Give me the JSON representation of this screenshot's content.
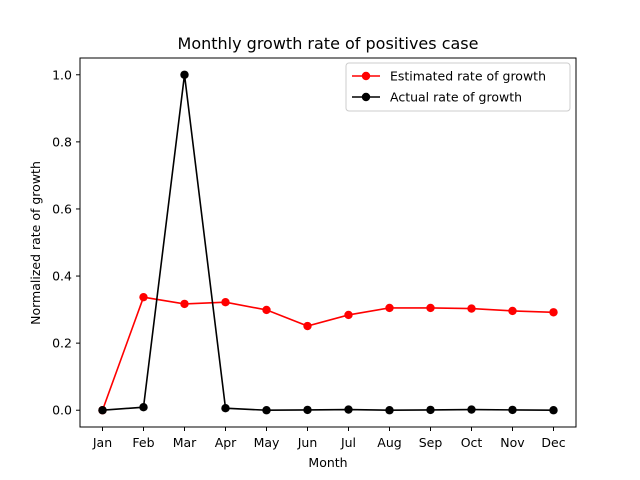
{
  "chart_data": {
    "type": "line",
    "title": "Monthly growth rate of positives case",
    "xlabel": "Month",
    "ylabel": "Normalized rate of growth",
    "categories": [
      "Jan",
      "Feb",
      "Mar",
      "Apr",
      "May",
      "Jun",
      "Jul",
      "Aug",
      "Sep",
      "Oct",
      "Nov",
      "Dec"
    ],
    "yticks": [
      "0.0",
      "0.2",
      "0.4",
      "0.6",
      "0.8",
      "1.0"
    ],
    "ylim": [
      -0.05,
      1.05
    ],
    "grid": false,
    "legend_position": "top-right",
    "series": [
      {
        "name": "Estimated rate of growth",
        "color": "#ff0000",
        "values": [
          0.0,
          0.337,
          0.317,
          0.322,
          0.299,
          0.251,
          0.284,
          0.305,
          0.305,
          0.303,
          0.296,
          0.292
        ]
      },
      {
        "name": "Actual rate of growth",
        "color": "#000000",
        "values": [
          0.0,
          0.009,
          1.0,
          0.006,
          0.0,
          0.001,
          0.002,
          0.0,
          0.001,
          0.002,
          0.001,
          0.0
        ]
      }
    ]
  }
}
